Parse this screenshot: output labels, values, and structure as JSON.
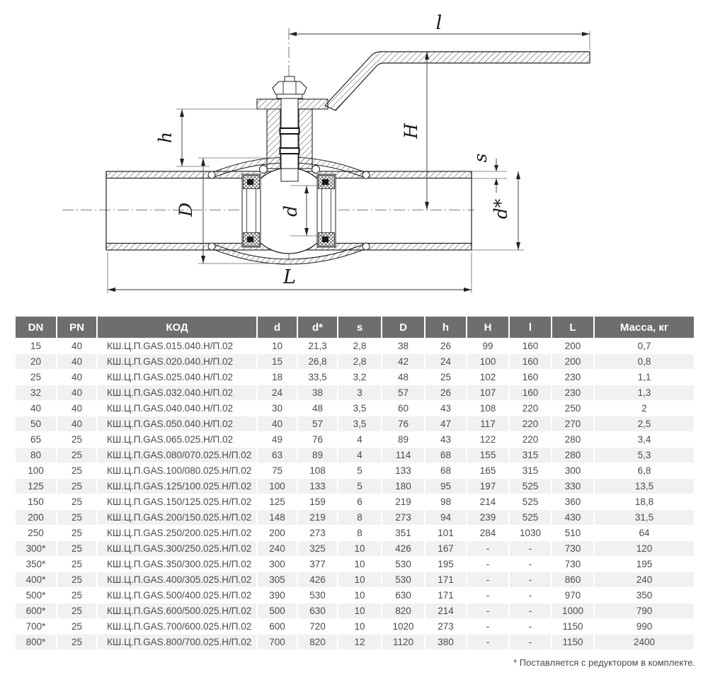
{
  "drawing": {
    "labels": {
      "l": "l",
      "h": "h",
      "H": "H",
      "s": "s",
      "d_star": "d*",
      "D": "D",
      "d": "d",
      "L": "L"
    }
  },
  "table": {
    "headers": [
      "DN",
      "PN",
      "КОД",
      "d",
      "d*",
      "s",
      "D",
      "h",
      "H",
      "l",
      "L",
      "Масса, кг"
    ],
    "rows": [
      [
        "15",
        "40",
        "КШ.Ц.П.GAS.015.040.Н/П.02",
        "10",
        "21,3",
        "2,8",
        "38",
        "26",
        "99",
        "160",
        "200",
        "0,7"
      ],
      [
        "20",
        "40",
        "КШ.Ц.П.GAS.020.040.Н/П.02",
        "15",
        "26,8",
        "2,8",
        "42",
        "24",
        "100",
        "160",
        "200",
        "0,8"
      ],
      [
        "25",
        "40",
        "КШ.Ц.П.GAS.025.040.Н/П.02",
        "18",
        "33,5",
        "3,2",
        "48",
        "25",
        "102",
        "160",
        "230",
        "1,1"
      ],
      [
        "32",
        "40",
        "КШ.Ц.П.GAS.032.040.Н/П.02",
        "24",
        "38",
        "3",
        "57",
        "26",
        "107",
        "160",
        "230",
        "1,3"
      ],
      [
        "40",
        "40",
        "КШ.Ц.П.GAS.040.040.Н/П.02",
        "30",
        "48",
        "3,5",
        "60",
        "43",
        "108",
        "220",
        "250",
        "2"
      ],
      [
        "50",
        "40",
        "КШ.Ц.П.GAS.050.040.Н/П.02",
        "40",
        "57",
        "3,5",
        "76",
        "47",
        "117",
        "220",
        "270",
        "2,5"
      ],
      [
        "65",
        "25",
        "КШ.Ц.П.GAS.065.025.Н/П.02",
        "49",
        "76",
        "4",
        "89",
        "43",
        "122",
        "220",
        "280",
        "3,4"
      ],
      [
        "80",
        "25",
        "КШ.Ц.П.GAS.080/070.025.Н/П.02",
        "63",
        "89",
        "4",
        "114",
        "68",
        "155",
        "315",
        "280",
        "5,3"
      ],
      [
        "100",
        "25",
        "КШ.Ц.П.GAS.100/080.025.Н/П.02",
        "75",
        "108",
        "5",
        "133",
        "68",
        "165",
        "315",
        "300",
        "6,8"
      ],
      [
        "125",
        "25",
        "КШ.Ц.П.GAS.125/100.025.Н/П.02",
        "100",
        "133",
        "5",
        "180",
        "95",
        "197",
        "525",
        "330",
        "13,5"
      ],
      [
        "150",
        "25",
        "КШ.Ц.П.GAS.150/125.025.Н/П.02",
        "125",
        "159",
        "6",
        "219",
        "98",
        "214",
        "525",
        "360",
        "18,8"
      ],
      [
        "200",
        "25",
        "КШ.Ц.П.GAS.200/150.025.Н/П.02",
        "148",
        "219",
        "8",
        "273",
        "94",
        "239",
        "525",
        "430",
        "31,5"
      ],
      [
        "250",
        "25",
        "КШ.Ц.П.GAS.250/200.025.Н/П.02",
        "200",
        "273",
        "8",
        "351",
        "101",
        "284",
        "1030",
        "510",
        "64"
      ],
      [
        "300*",
        "25",
        "КШ.Ц.П.GAS.300/250.025.Н/П.02",
        "240",
        "325",
        "10",
        "426",
        "167",
        "-",
        "-",
        "730",
        "120"
      ],
      [
        "350*",
        "25",
        "КШ.Ц.П.GAS.350/300.025.Н/П.02",
        "300",
        "377",
        "10",
        "530",
        "195",
        "-",
        "-",
        "730",
        "195"
      ],
      [
        "400*",
        "25",
        "КШ.Ц.П.GAS.400/305.025.Н/П.02",
        "305",
        "426",
        "10",
        "530",
        "171",
        "-",
        "-",
        "860",
        "240"
      ],
      [
        "500*",
        "25",
        "КШ.Ц.П.GAS.500/400.025.Н/П.02",
        "390",
        "530",
        "10",
        "630",
        "171",
        "-",
        "-",
        "970",
        "350"
      ],
      [
        "600*",
        "25",
        "КШ.Ц.П.GAS.600/500.025.Н/П.02",
        "500",
        "630",
        "10",
        "820",
        "214",
        "-",
        "-",
        "1000",
        "790"
      ],
      [
        "700*",
        "25",
        "КШ.Ц.П.GAS.700/600.025.Н/П.02",
        "600",
        "720",
        "10",
        "1020",
        "273",
        "-",
        "-",
        "1150",
        "990"
      ],
      [
        "800*",
        "25",
        "КШ.Ц.П.GAS.800/700.025.Н/П.02",
        "700",
        "820",
        "12",
        "1120",
        "380",
        "-",
        "-",
        "1150",
        "2400"
      ]
    ]
  },
  "footnote": "* Поставляется с редуктором в комплекте.",
  "colors": {
    "header_bg": "#6e6e6e",
    "header_text": "#ffffff",
    "row_alt_bg": "#f1f1f3",
    "body_text": "#4b4b4b",
    "line": "#222222"
  }
}
